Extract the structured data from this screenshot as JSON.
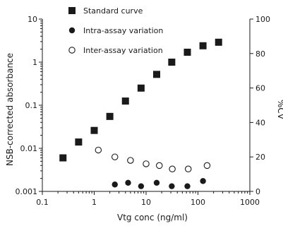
{
  "chart_data": {
    "type": "scatter",
    "xlabel": "Vtg conc (ng/ml)",
    "ylabel": "NSB-corrected absorbance",
    "ylabel_right": "%CV",
    "x_scale": "log",
    "y_scale": "log",
    "xlim": [
      0.1,
      1000
    ],
    "ylim": [
      0.001,
      10
    ],
    "ylim_right": [
      0,
      100
    ],
    "x_ticks": [
      "0.1",
      "1",
      "10",
      "100",
      "1000"
    ],
    "y_ticks": [
      "0.001",
      "0.01",
      "0.1",
      "1",
      "10"
    ],
    "y_ticks_right": [
      "0",
      "20",
      "40",
      "60",
      "80",
      "100"
    ],
    "grid": false,
    "legend_position": "top-center",
    "series": [
      {
        "name": "Standard curve",
        "axis": "left",
        "marker": "filled-square",
        "x": [
          0.25,
          0.5,
          1.0,
          2.0,
          4.0,
          8.0,
          16.0,
          31.25,
          62.5,
          125,
          250
        ],
        "y": [
          0.006,
          0.014,
          0.026,
          0.055,
          0.125,
          0.25,
          0.52,
          1.0,
          1.7,
          2.4,
          2.9
        ]
      },
      {
        "name": "Intra-assay variation",
        "axis": "right",
        "marker": "filled-circle",
        "x": [
          2.5,
          4.5,
          8.0,
          16.0,
          31.25,
          62.5,
          125
        ],
        "y": [
          4,
          5,
          3,
          5,
          3,
          3,
          6
        ]
      },
      {
        "name": "Inter-assay variation",
        "axis": "right",
        "marker": "open-circle",
        "x": [
          1.2,
          2.5,
          5.0,
          10.0,
          18.0,
          32.0,
          65.0,
          150.0
        ],
        "y": [
          24,
          20,
          18,
          16,
          15,
          13,
          13,
          15
        ]
      }
    ]
  }
}
